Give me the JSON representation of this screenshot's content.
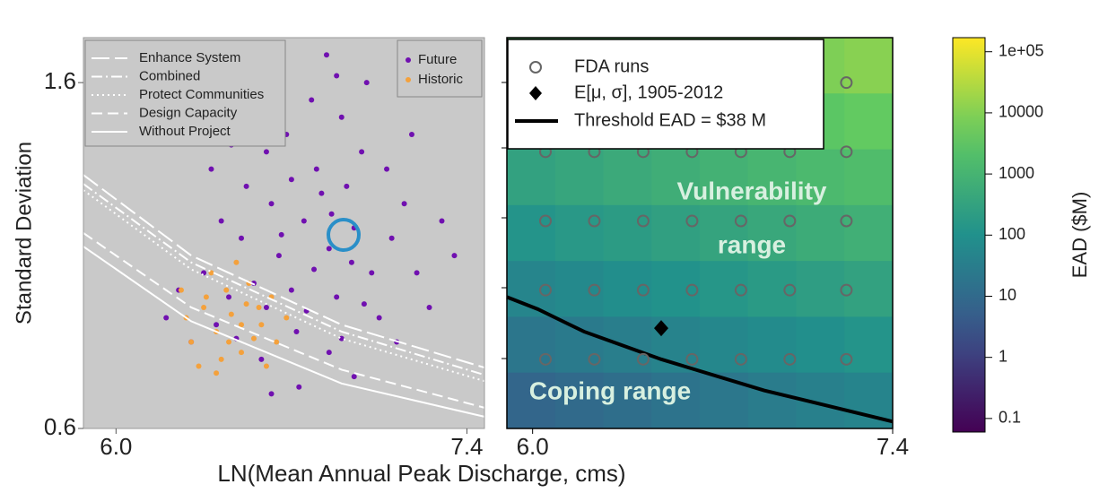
{
  "chart_data": [
    {
      "type": "scatter",
      "xlabel": "LN(Mean Annual Peak Discharge, cms)",
      "ylabel": "Standard Deviation",
      "xlim": [
        5.87,
        7.47
      ],
      "ylim": [
        0.6,
        1.73
      ],
      "xticks": [
        {
          "value": 6.0,
          "label": "6.0"
        },
        7.4
      ],
      "yticks": [
        1.6,
        0.6
      ],
      "background": "#c9c9c9",
      "series": [
        {
          "name": "Future",
          "color": "#7010b0",
          "x": [
            6.79,
            6.85,
            6.7,
            6.95,
            6.6,
            6.88,
            6.75,
            7.02,
            6.65,
            6.92,
            6.55,
            7.1,
            6.8,
            6.72,
            7.05,
            6.98,
            6.62,
            6.45,
            7.15,
            6.85,
            6.5,
            6.68,
            7.2,
            6.4,
            6.9,
            6.58,
            7.08,
            6.35,
            6.78,
            7.25,
            6.3,
            6.95,
            6.52,
            7.18,
            6.25,
            6.88,
            6.42,
            7.3,
            6.73,
            6.6,
            7.0,
            6.2,
            6.82,
            6.66,
            6.94,
            6.76,
            6.48,
            7.12,
            6.56,
            6.84,
            6.38,
            7.22,
            6.7,
            6.99,
            6.62,
            6.28,
            7.35,
            6.9,
            6.46,
            6.86
          ],
          "values": [
            1.06,
            1.12,
            1.0,
            1.18,
            0.95,
            0.98,
            1.2,
            1.05,
            1.1,
            1.3,
            1.02,
            1.15,
            1.35,
            0.88,
            0.92,
            1.4,
            1.25,
            0.98,
            1.25,
            0.82,
            1.15,
            1.45,
            1.05,
            0.9,
            1.5,
            0.8,
            1.35,
            1.05,
            1.55,
            0.95,
            0.85,
            0.75,
            1.3,
            1.45,
            1.0,
            1.62,
            1.2,
            1.2,
            0.72,
            1.4,
            1.6,
            0.92,
            1.28,
            1.16,
            1.08,
            0.94,
            0.86,
            0.85,
            1.5,
            1.68,
            1.35,
            1.58,
            1.32,
            0.96,
            0.7,
            1.48,
            1.1,
            0.86,
            1.42,
            1.22
          ]
        },
        {
          "name": "Historic",
          "color": "#f4a13c",
          "x": [
            6.46,
            6.4,
            6.52,
            6.35,
            6.58,
            6.44,
            6.3,
            6.5,
            6.62,
            6.38,
            6.55,
            6.42,
            6.28,
            6.48,
            6.6,
            6.33,
            6.68,
            6.36,
            6.53,
            6.45,
            6.26,
            6.57,
            6.4,
            6.64,
            6.5
          ],
          "values": [
            0.93,
            0.88,
            0.96,
            0.95,
            0.9,
            1.0,
            0.85,
            0.82,
            0.98,
            1.05,
            0.86,
            0.8,
            0.92,
            1.08,
            0.78,
            0.78,
            0.92,
            0.98,
            1.02,
            0.85,
            1.0,
            0.95,
            0.76,
            0.85,
            0.9
          ]
        }
      ],
      "lines": [
        {
          "name": "Enhance System",
          "color": "#ffffff",
          "dash": "longdash",
          "x": [
            5.87,
            6.3,
            6.9,
            7.47
          ],
          "y": [
            1.333,
            1.1,
            0.9,
            0.776
          ]
        },
        {
          "name": "Combined",
          "color": "#ffffff",
          "dash": "dashdot",
          "x": [
            5.87,
            6.3,
            6.9,
            7.47
          ],
          "y": [
            1.307,
            1.08,
            0.88,
            0.755
          ]
        },
        {
          "name": "Protect Communities",
          "color": "#ffffff",
          "dash": "dotted",
          "x": [
            5.87,
            6.3,
            6.9,
            7.47
          ],
          "y": [
            1.289,
            1.06,
            0.86,
            0.737
          ]
        },
        {
          "name": "Design Capacity",
          "color": "#ffffff",
          "dash": "dashed",
          "x": [
            5.87,
            6.3,
            6.9,
            7.47
          ],
          "y": [
            1.165,
            0.95,
            0.77,
            0.66
          ]
        },
        {
          "name": "Without Project",
          "color": "#ffffff",
          "dash": "solid",
          "x": [
            5.87,
            6.3,
            6.9,
            7.47
          ],
          "y": [
            1.126,
            0.91,
            0.73,
            0.634
          ]
        }
      ]
    },
    {
      "type": "heatmap",
      "xlim": [
        5.9,
        7.4
      ],
      "ylim": [
        0.6,
        1.73
      ],
      "xticks": [
        {
          "value": 6.0,
          "label": "6.0"
        },
        7.4
      ],
      "z": [
        [
          1900,
          2400,
          3100,
          4000,
          5200,
          6700,
          8700,
          11000
        ],
        [
          760,
          980,
          1300,
          1600,
          2100,
          2700,
          3500,
          4500
        ],
        [
          300,
          390,
          510,
          650,
          850,
          1100,
          1400,
          1800
        ],
        [
          120,
          160,
          200,
          260,
          340,
          440,
          570,
          730
        ],
        [
          50,
          64,
          83,
          110,
          140,
          180,
          230,
          300
        ],
        [
          20,
          26,
          33,
          43,
          55,
          71,
          92,
          120
        ],
        [
          8,
          10,
          13,
          17,
          22,
          29,
          37,
          48
        ]
      ],
      "colorscale": "viridis",
      "colorbar": {
        "label": "EAD ($M)",
        "log": true,
        "lim": [
          0.06,
          170000
        ],
        "ticks": [
          {
            "value": 100000,
            "label": "1e+05"
          },
          10000,
          1000,
          100,
          10,
          1,
          0.1
        ]
      },
      "points": {
        "name": "FDA runs",
        "color": "#666666",
        "x": [
          6.05,
          6.24,
          6.43,
          6.62,
          6.81,
          7.0,
          7.22,
          6.05,
          6.24,
          6.43,
          6.62,
          6.81,
          7.0,
          7.22,
          6.05,
          6.24,
          6.43,
          6.62,
          6.81,
          7.0,
          7.22,
          6.05,
          6.24,
          6.43,
          6.62,
          6.81,
          7.0,
          7.22,
          6.05,
          6.24,
          6.43,
          6.62,
          6.81,
          7.0,
          7.22
        ],
        "y": [
          0.8,
          0.8,
          0.8,
          0.8,
          0.8,
          0.8,
          0.8,
          1.0,
          1.0,
          1.0,
          1.0,
          1.0,
          1.0,
          1.0,
          1.2,
          1.2,
          1.2,
          1.2,
          1.2,
          1.2,
          1.2,
          1.4,
          1.4,
          1.4,
          1.4,
          1.4,
          1.4,
          1.4,
          1.6,
          1.6,
          1.6,
          1.6,
          1.6,
          1.6,
          1.6
        ]
      },
      "mean_point": {
        "name": "E[μ, σ], 1905-2012",
        "color": "#000000",
        "x": 6.5,
        "y": 0.89
      },
      "threshold": {
        "name": "Threshold EAD = $38 M",
        "color": "#000000",
        "x": [
          5.9,
          6.02,
          6.2,
          6.5,
          6.9,
          7.4
        ],
        "y": [
          0.98,
          0.945,
          0.88,
          0.8,
          0.71,
          0.62
        ]
      },
      "annotations": [
        "Vulnerability",
        "range",
        "Coping range"
      ]
    }
  ]
}
